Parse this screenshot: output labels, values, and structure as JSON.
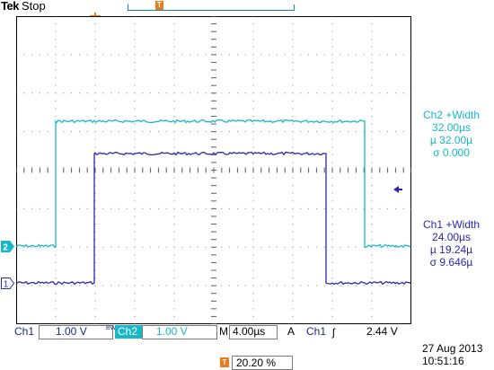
{
  "status": {
    "brand": "Tek",
    "acq_state": "Stop"
  },
  "colors": {
    "ch1": "#2a2aa8",
    "ch2": "#16b8c8",
    "trigger": "#f07a1a"
  },
  "icons": {
    "trigger_marker": "T-orange-flag",
    "record_marker": "T-orange-flag",
    "ch1_marker": "channel-1-tag",
    "ch2_marker": "channel-2-tag",
    "trigger_level_arrow": "left-arrow",
    "slope": "rising-edge"
  },
  "measurements": {
    "ch2": {
      "title": "Ch2 +Width",
      "value": "32.00µs",
      "mean": "µ 32.00µ",
      "stddev": "σ 0.000"
    },
    "ch1": {
      "title": "Ch1 +Width",
      "value": "24.00µs",
      "mean": "µ 19.24µ",
      "stddev": "σ 9.646µ"
    }
  },
  "settings": {
    "ch1_label": "Ch1",
    "ch1_volts": "1.00 V",
    "bw_mark": "BW",
    "ch2_label": "Ch2",
    "ch2_volts": "1.00 V",
    "m_label": "M",
    "timebase": "4.00µs",
    "a_label": "A",
    "trigger_source": "Ch1",
    "slope_symbol": "ʃ",
    "trigger_level": "2.44 V",
    "trigger_position": "20.20 %",
    "t_marker": "T"
  },
  "clock": {
    "date": "27 Aug 2013",
    "time": "10:51:16"
  },
  "waveforms": {
    "ch2": {
      "type": "pulse",
      "width_us": 32.0
    },
    "ch1": {
      "type": "pulse",
      "width_us": 24.0
    }
  },
  "channel_tags": {
    "ch1": "1",
    "ch2": "2"
  }
}
